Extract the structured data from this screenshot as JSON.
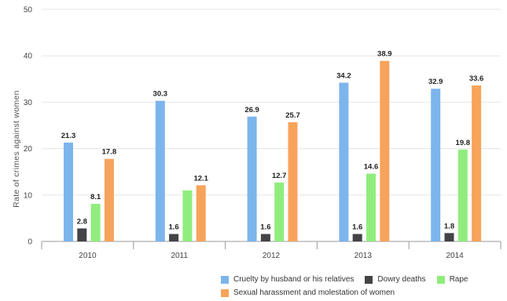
{
  "chart_data": {
    "type": "bar",
    "title": "",
    "xlabel": "",
    "ylabel": "Rate of crimes against women",
    "categories": [
      "2010",
      "2011",
      "2012",
      "2013",
      "2014"
    ],
    "ylim": [
      0,
      50
    ],
    "yticks": [
      0,
      10,
      20,
      30,
      40,
      50
    ],
    "grid": true,
    "legend_position": "bottom",
    "series": [
      {
        "name": "Cruelty by husband or his relatives",
        "color": "#7cb5ec",
        "values": [
          21.3,
          30.3,
          26.9,
          34.2,
          32.9
        ],
        "labels": [
          "21.3",
          "30.3",
          "26.9",
          "34.2",
          "32.9"
        ]
      },
      {
        "name": "Dowry deaths",
        "color": "#434348",
        "values": [
          2.8,
          1.6,
          1.6,
          1.6,
          1.8
        ],
        "labels": [
          "2.8",
          "1.6",
          "1.6",
          "1.6",
          "1.8"
        ]
      },
      {
        "name": "Rape",
        "color": "#90ed7d",
        "values": [
          8.1,
          11,
          12.7,
          14.6,
          19.8
        ],
        "labels": [
          "8.1",
          "",
          "12.7",
          "14.6",
          "19.8"
        ]
      },
      {
        "name": "Sexual harassment and molestation of women",
        "color": "#f7a35c",
        "values": [
          17.8,
          12.1,
          25.7,
          38.9,
          33.6
        ],
        "labels": [
          "17.8",
          "12.1",
          "25.7",
          "38.9",
          "33.6"
        ]
      }
    ]
  }
}
